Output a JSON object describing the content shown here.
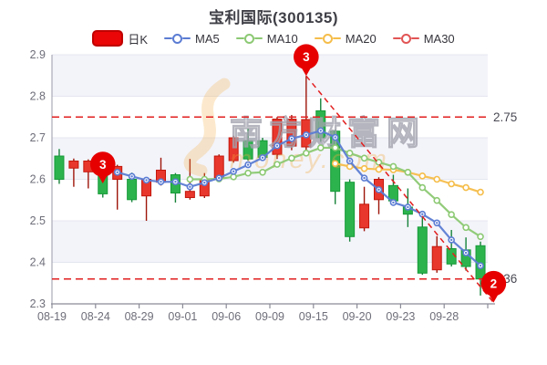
{
  "title": "宝利国际(300135)",
  "legend": [
    {
      "id": "dayk",
      "label": "日K",
      "color": "#ea0606",
      "border": "#bf0000",
      "type": "candle"
    },
    {
      "id": "ma5",
      "label": "MA5",
      "color": "#5b7cd3",
      "type": "ma"
    },
    {
      "id": "ma10",
      "label": "MA10",
      "color": "#8cc973",
      "type": "ma"
    },
    {
      "id": "ma20",
      "label": "MA20",
      "color": "#f5bd4a",
      "type": "ma"
    },
    {
      "id": "ma30",
      "label": "MA30",
      "color": "#e25555",
      "type": "ma"
    }
  ],
  "watermark": {
    "text_cn": "南方财富网",
    "text_en": "money.com"
  },
  "chart_data": {
    "type": "candlestick",
    "ylim": [
      2.3,
      2.9
    ],
    "yticks": [
      2.9,
      2.8,
      2.7,
      2.6,
      2.5,
      2.4,
      2.3
    ],
    "xtick_labels": [
      "08-19",
      "08-24",
      "08-29",
      "09-01",
      "09-06",
      "09-09",
      "09-15",
      "09-20",
      "09-23",
      "09-28"
    ],
    "dates": [
      "08-19",
      "08-22",
      "08-23",
      "08-24",
      "08-25",
      "08-26",
      "08-29",
      "08-30",
      "08-31",
      "09-01",
      "09-02",
      "09-05",
      "09-06",
      "09-07",
      "09-08",
      "09-09",
      "09-13",
      "09-14",
      "09-15",
      "09-16",
      "09-19",
      "09-20",
      "09-21",
      "09-22",
      "09-23",
      "09-26",
      "09-27",
      "09-28",
      "09-29",
      "09-30"
    ],
    "candles": [
      [
        2.656,
        2.673,
        2.589,
        2.6
      ],
      [
        2.627,
        2.65,
        2.582,
        2.644
      ],
      [
        2.618,
        2.648,
        2.578,
        2.644
      ],
      [
        2.63,
        2.64,
        2.556,
        2.565
      ],
      [
        2.6,
        2.635,
        2.527,
        2.631
      ],
      [
        2.6,
        2.616,
        2.545,
        2.551
      ],
      [
        2.56,
        2.605,
        2.5,
        2.6
      ],
      [
        2.593,
        2.652,
        2.585,
        2.622
      ],
      [
        2.611,
        2.615,
        2.544,
        2.567
      ],
      [
        2.556,
        2.649,
        2.551,
        2.571
      ],
      [
        2.56,
        2.615,
        2.555,
        2.6
      ],
      [
        2.604,
        2.66,
        2.595,
        2.656
      ],
      [
        2.645,
        2.705,
        2.64,
        2.7
      ],
      [
        2.693,
        2.722,
        2.645,
        2.649
      ],
      [
        2.693,
        2.7,
        2.648,
        2.653
      ],
      [
        2.66,
        2.75,
        2.649,
        2.745
      ],
      [
        2.68,
        2.755,
        2.67,
        2.745
      ],
      [
        2.678,
        2.849,
        2.67,
        2.744
      ],
      [
        2.765,
        2.795,
        2.69,
        2.7
      ],
      [
        2.716,
        2.72,
        2.54,
        2.571
      ],
      [
        2.593,
        2.6,
        2.45,
        2.462
      ],
      [
        2.483,
        2.582,
        2.475,
        2.54
      ],
      [
        2.551,
        2.605,
        2.516,
        2.6
      ],
      [
        2.585,
        2.611,
        2.545,
        2.548
      ],
      [
        2.533,
        2.578,
        2.485,
        2.516
      ],
      [
        2.485,
        2.518,
        2.37,
        2.374
      ],
      [
        2.382,
        2.463,
        2.375,
        2.438
      ],
      [
        2.433,
        2.478,
        2.39,
        2.396
      ],
      [
        2.43,
        2.46,
        2.38,
        2.39
      ],
      [
        2.44,
        2.45,
        2.32,
        2.36
      ]
    ],
    "ma5": {
      "start": 4,
      "values": [
        2.617,
        2.607,
        2.598,
        2.594,
        2.594,
        2.582,
        2.592,
        2.603,
        2.619,
        2.635,
        2.652,
        2.681,
        2.698,
        2.707,
        2.717,
        2.701,
        2.644,
        2.603,
        2.575,
        2.544,
        2.533,
        2.516,
        2.495,
        2.454,
        2.423,
        2.392
      ]
    },
    "ma10": {
      "start": 9,
      "values": [
        2.6,
        2.6,
        2.601,
        2.606,
        2.615,
        2.617,
        2.636,
        2.651,
        2.663,
        2.676,
        2.676,
        2.663,
        2.651,
        2.641,
        2.631,
        2.617,
        2.58,
        2.549,
        2.515,
        2.484,
        2.462
      ]
    },
    "ma20": {
      "start": 19,
      "values": [
        2.638,
        2.631,
        2.626,
        2.624,
        2.623,
        2.617,
        2.608,
        2.6,
        2.589,
        2.58,
        2.569
      ]
    },
    "ref_lines": [
      {
        "price": 2.75,
        "label": "2.75"
      },
      {
        "price": 2.36,
        "label": "2.36"
      }
    ],
    "trend_line": {
      "from": {
        "candle_index": 17,
        "price": 2.849
      },
      "to": {
        "candle_index": 29.9,
        "price": 2.303
      }
    },
    "badges": [
      {
        "label": "3",
        "candle_index": 3,
        "price": 2.59
      },
      {
        "label": "3",
        "candle_index": 17,
        "price": 2.849
      },
      {
        "label": "2",
        "candle_index": 29.9,
        "price": 2.303
      }
    ],
    "colors": {
      "up_fill": "#e8372c",
      "up_border": "#c3170c",
      "up_wick": "#9e150a",
      "down_fill": "#2db34d",
      "down_border": "#169a38",
      "down_wick": "#17833a",
      "ma5": "#5b7cd3",
      "ma10": "#8cc973",
      "ma20": "#f5bd4a",
      "ma30": "#e25555",
      "ref_dash": "#e21f1f",
      "badge": "#e60000",
      "band": "#f3f4fa",
      "grid": "#e4e6f0",
      "axis": "#8b8b98",
      "tick_text": "#6e6e7a",
      "ref_label": "#4a4a55",
      "watermark_gray": "#a2a3ae",
      "watermark_orange": "#f2a93e"
    }
  }
}
